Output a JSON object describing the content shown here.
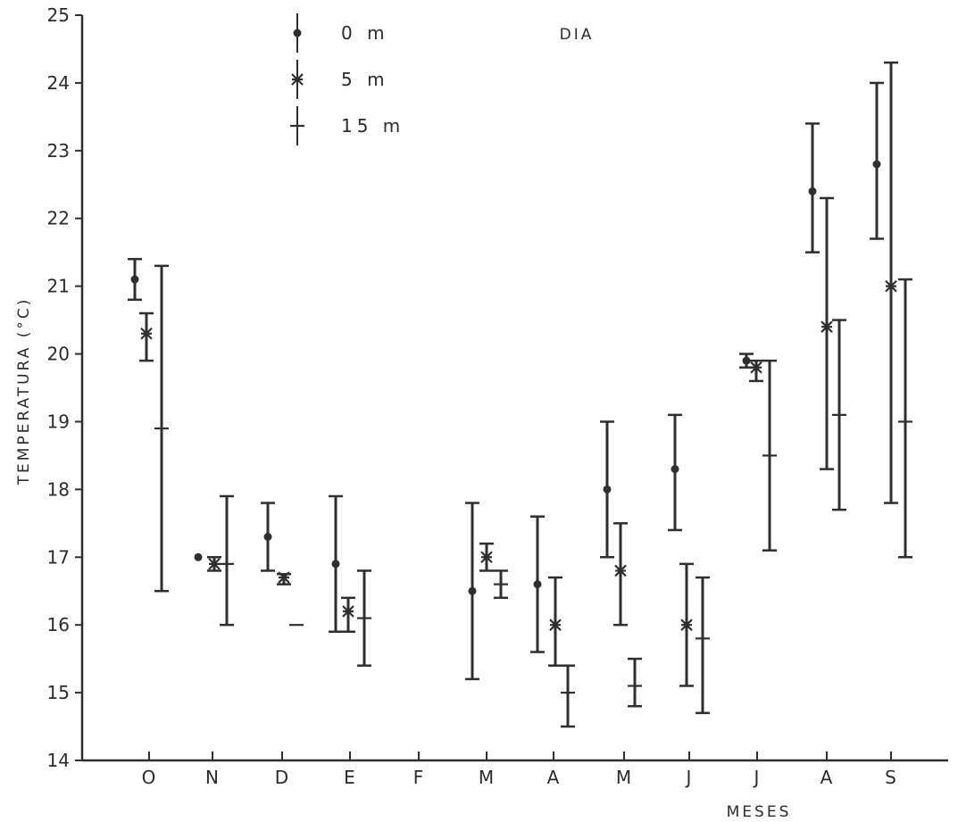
{
  "chart_data": {
    "type": "scatter",
    "title": "DIA",
    "ylabel": "TEMPERATURA (°C)",
    "xlabel": "MESES",
    "ylim": [
      14,
      25
    ],
    "yticks": [
      "14",
      "15",
      "16",
      "17",
      "18",
      "19",
      "20",
      "21",
      "22",
      "23",
      "24",
      "25"
    ],
    "categories": [
      "O",
      "N",
      "D",
      "E",
      "F",
      "M",
      "A",
      "M",
      "J",
      "J",
      "A",
      "S"
    ],
    "grid": false,
    "legend_position": "top-left",
    "colors": {
      "ink": "#2f2f2f"
    },
    "series": [
      {
        "name": "0 m",
        "marker": "dot",
        "points": [
          {
            "cat": 0,
            "y": 21.1,
            "low": 20.8,
            "high": 21.4
          },
          {
            "cat": 1,
            "y": 17.0
          },
          {
            "cat": 2,
            "y": 17.3,
            "low": 16.8,
            "high": 17.8
          },
          {
            "cat": 3,
            "y": 16.9,
            "low": 15.9,
            "high": 17.9
          },
          {
            "cat": 5,
            "y": 16.5,
            "low": 15.2,
            "high": 17.8
          },
          {
            "cat": 6,
            "y": 16.6,
            "low": 15.6,
            "high": 17.6
          },
          {
            "cat": 7,
            "y": 18.0,
            "low": 17.0,
            "high": 19.0
          },
          {
            "cat": 8,
            "y": 18.3,
            "low": 17.4,
            "high": 19.1
          },
          {
            "cat": 9,
            "y": 19.9,
            "low": 19.8,
            "high": 20.0
          },
          {
            "cat": 10,
            "y": 22.4,
            "low": 21.5,
            "high": 23.4
          },
          {
            "cat": 11,
            "y": 22.8,
            "low": 21.7,
            "high": 24.0
          }
        ]
      },
      {
        "name": "5 m",
        "marker": "asterisk",
        "points": [
          {
            "cat": 0,
            "y": 20.3,
            "low": 19.9,
            "high": 20.6
          },
          {
            "cat": 1,
            "y": 16.9,
            "low": 16.8,
            "high": 17.0
          },
          {
            "cat": 2,
            "y": 16.7,
            "low": 16.6,
            "high": 16.75
          },
          {
            "cat": 3,
            "y": 16.2,
            "low": 15.9,
            "high": 16.4
          },
          {
            "cat": 5,
            "y": 17.0,
            "low": 16.8,
            "high": 17.2
          },
          {
            "cat": 6,
            "y": 16.0,
            "low": 15.4,
            "high": 16.7
          },
          {
            "cat": 7,
            "y": 16.8,
            "low": 16.0,
            "high": 17.5
          },
          {
            "cat": 8,
            "y": 16.0,
            "low": 15.1,
            "high": 16.9
          },
          {
            "cat": 9,
            "y": 19.8,
            "low": 19.6,
            "high": 19.9
          },
          {
            "cat": 10,
            "y": 20.4,
            "low": 18.3,
            "high": 22.3
          },
          {
            "cat": 11,
            "y": 21.0,
            "low": 17.8,
            "high": 24.3
          }
        ]
      },
      {
        "name": "15 m",
        "marker": "plus",
        "points": [
          {
            "cat": 0,
            "y": 18.9,
            "low": 16.5,
            "high": 21.3
          },
          {
            "cat": 1,
            "y": 16.9,
            "low": 16.0,
            "high": 17.9
          },
          {
            "cat": 2,
            "y": 16.0
          },
          {
            "cat": 3,
            "y": 16.1,
            "low": 15.4,
            "high": 16.8
          },
          {
            "cat": 5,
            "y": 16.6,
            "low": 16.4,
            "high": 16.8
          },
          {
            "cat": 6,
            "y": 15.0,
            "low": 14.5,
            "high": 15.4
          },
          {
            "cat": 7,
            "y": 15.1,
            "low": 14.8,
            "high": 15.5
          },
          {
            "cat": 8,
            "y": 15.8,
            "low": 14.7,
            "high": 16.7
          },
          {
            "cat": 9,
            "y": 18.5,
            "low": 17.1,
            "high": 19.9
          },
          {
            "cat": 10,
            "y": 19.1,
            "low": 17.7,
            "high": 20.5
          },
          {
            "cat": 11,
            "y": 19.0,
            "low": 17.0,
            "high": 21.1
          }
        ]
      }
    ]
  }
}
